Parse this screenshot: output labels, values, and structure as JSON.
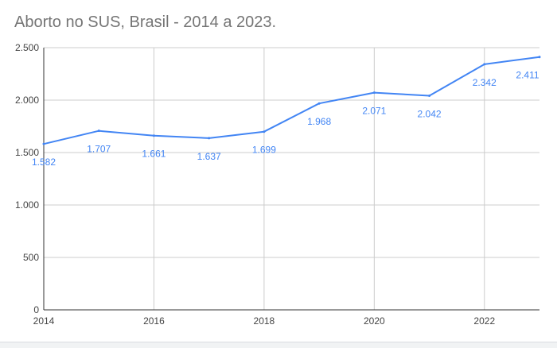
{
  "title": "Aborto no SUS, Brasil - 2014 a 2023.",
  "chart_data": {
    "type": "line",
    "title": "Aborto no SUS, Brasil - 2014 a 2023.",
    "xlabel": "",
    "ylabel": "",
    "x": [
      2014,
      2015,
      2016,
      2017,
      2018,
      2019,
      2020,
      2021,
      2022,
      2023
    ],
    "series": [
      {
        "values": [
          1582,
          1707,
          1661,
          1637,
          1699,
          1968,
          2071,
          2042,
          2342,
          2411
        ],
        "labels": [
          "1.582",
          "1.707",
          "1.661",
          "1.637",
          "1.699",
          "1.968",
          "2.071",
          "2.042",
          "2.342",
          "2.411"
        ]
      }
    ],
    "xlim": [
      2014,
      2023
    ],
    "ylim": [
      0,
      2500
    ],
    "x_ticks": [
      2014,
      2016,
      2018,
      2020,
      2022
    ],
    "x_tick_labels": [
      "2014",
      "2016",
      "2018",
      "2020",
      "2022"
    ],
    "y_ticks": [
      0,
      500,
      1000,
      1500,
      2000,
      2500
    ],
    "y_tick_labels": [
      "0",
      "500",
      "1.000",
      "1.500",
      "2.000",
      "2.500"
    ],
    "grid": true,
    "colors": {
      "line": "#4285f4",
      "grid": "#cccccc",
      "axis": "#333333"
    }
  }
}
